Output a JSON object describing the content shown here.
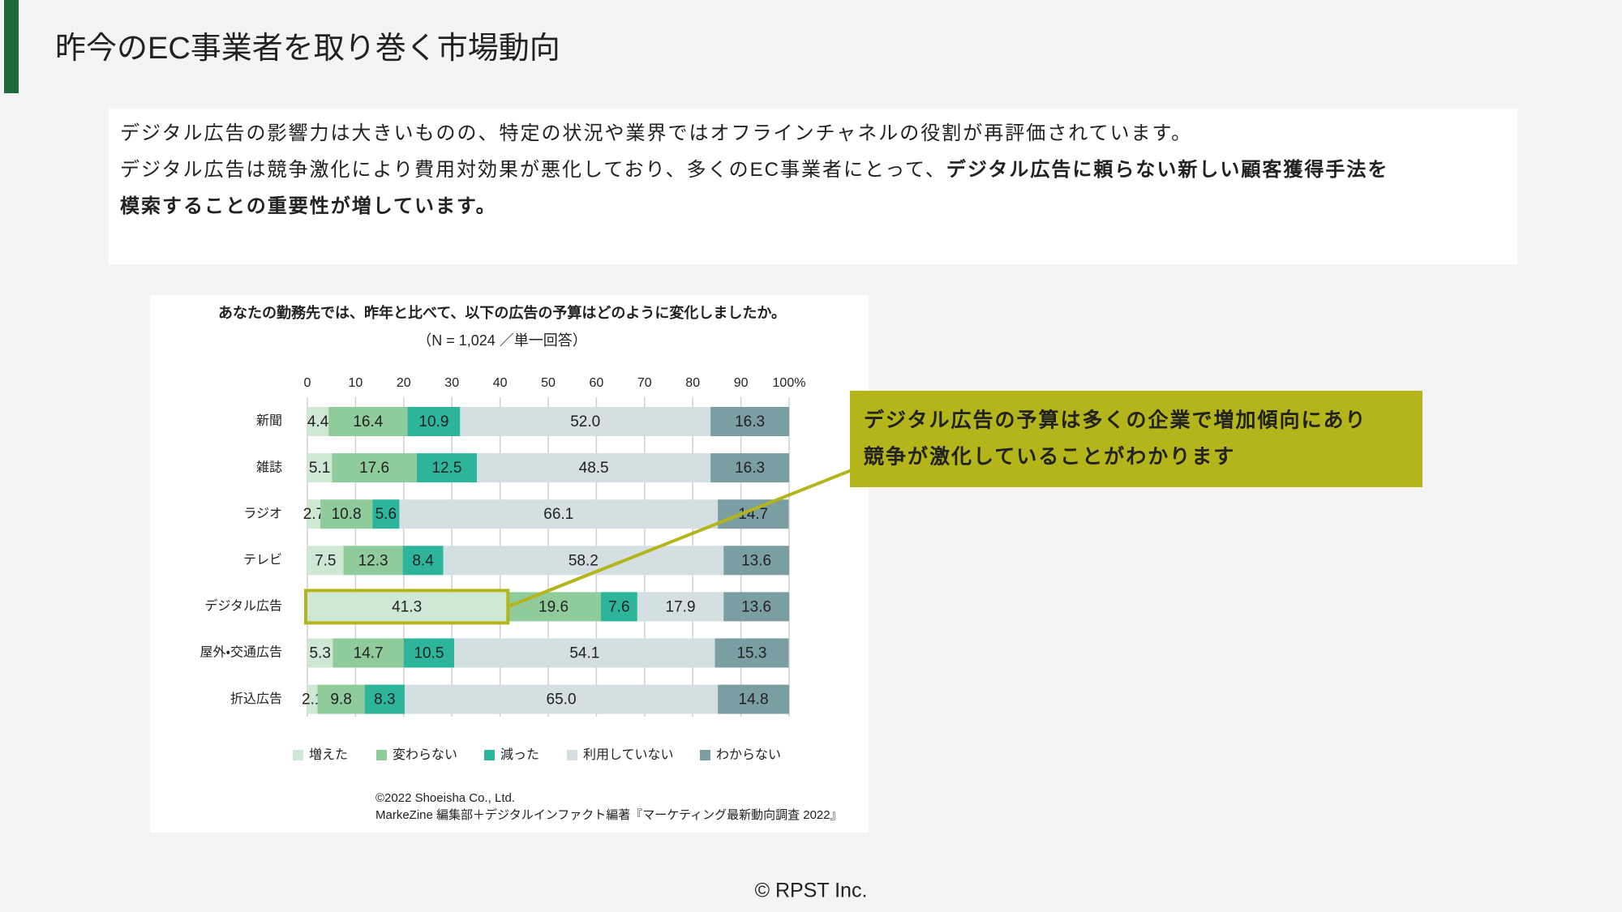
{
  "header": {
    "title": "昨今のEC事業者を取り巻く市場動向"
  },
  "intro": {
    "lines": [
      [
        {
          "text": "デジタル広告の影響力は大きいものの、特定の状況や業界ではオフラインチャネルの役割が再評価されています。",
          "bold": false
        }
      ],
      [
        {
          "text": "デジタル広告は競争激化により費用対効果が悪化しており、多くのEC事業者にとって、",
          "bold": false
        },
        {
          "text": "デジタル広告に頼らない新しい顧客獲得手法を",
          "bold": true
        }
      ],
      [
        {
          "text": "模索することの重要性が増しています。",
          "bold": true
        }
      ]
    ]
  },
  "chart_data": {
    "type": "stacked_bar",
    "orientation": "horizontal",
    "title": "あなたの勤務先では、昨年と比べて、以下の広告の予算はどのように変化しましたか。",
    "subtitle": "（N = 1,024 ／単一回答）",
    "categories": [
      "新聞",
      "雑誌",
      "ラジオ",
      "テレビ",
      "デジタル広告",
      "屋外・交通広告",
      "折込広告"
    ],
    "series": [
      {
        "name": "増えた",
        "color": "#cfe8d4",
        "values": [
          4.4,
          5.1,
          2.7,
          7.5,
          41.3,
          5.3,
          2.1
        ]
      },
      {
        "name": "変わらない",
        "color": "#8fcb9b",
        "values": [
          16.4,
          17.6,
          10.8,
          12.3,
          19.6,
          14.7,
          9.8
        ]
      },
      {
        "name": "減った",
        "color": "#2db59b",
        "values": [
          10.9,
          12.5,
          5.6,
          8.4,
          7.6,
          10.5,
          8.3
        ]
      },
      {
        "name": "利用していない",
        "color": "#d3dfe0",
        "values": [
          52,
          48.5,
          66.1,
          58.2,
          17.9,
          54.1,
          65
        ],
        "value_labels": [
          "52.0",
          "48.5",
          "66.1",
          "58.2",
          "17.9",
          "54.1",
          "65.0"
        ]
      },
      {
        "name": "わからない",
        "color": "#7b9ea3",
        "values": [
          16.3,
          16.3,
          14.7,
          13.6,
          13.6,
          15.3,
          14.8
        ]
      }
    ],
    "xlim": [
      0,
      100
    ],
    "xticks": [
      0,
      10,
      20,
      30,
      40,
      50,
      60,
      70,
      80,
      90,
      {
        "value": 100,
        "label": "100%"
      }
    ],
    "grid": true,
    "legend": "bottom",
    "annotation": {
      "lines": [
        "デジタル広告の予算は多くの企業で増加傾向にあり",
        "競争が激化していることがわかります"
      ],
      "color": "#b3b51b"
    },
    "source": [
      "©2022 Shoeisha Co., Ltd.",
      "MarkeZine 編集部＋デジタルインファクト編著『マーケティング最新動向調査 2022』"
    ]
  },
  "footer": {
    "text": "© RPST Inc."
  }
}
